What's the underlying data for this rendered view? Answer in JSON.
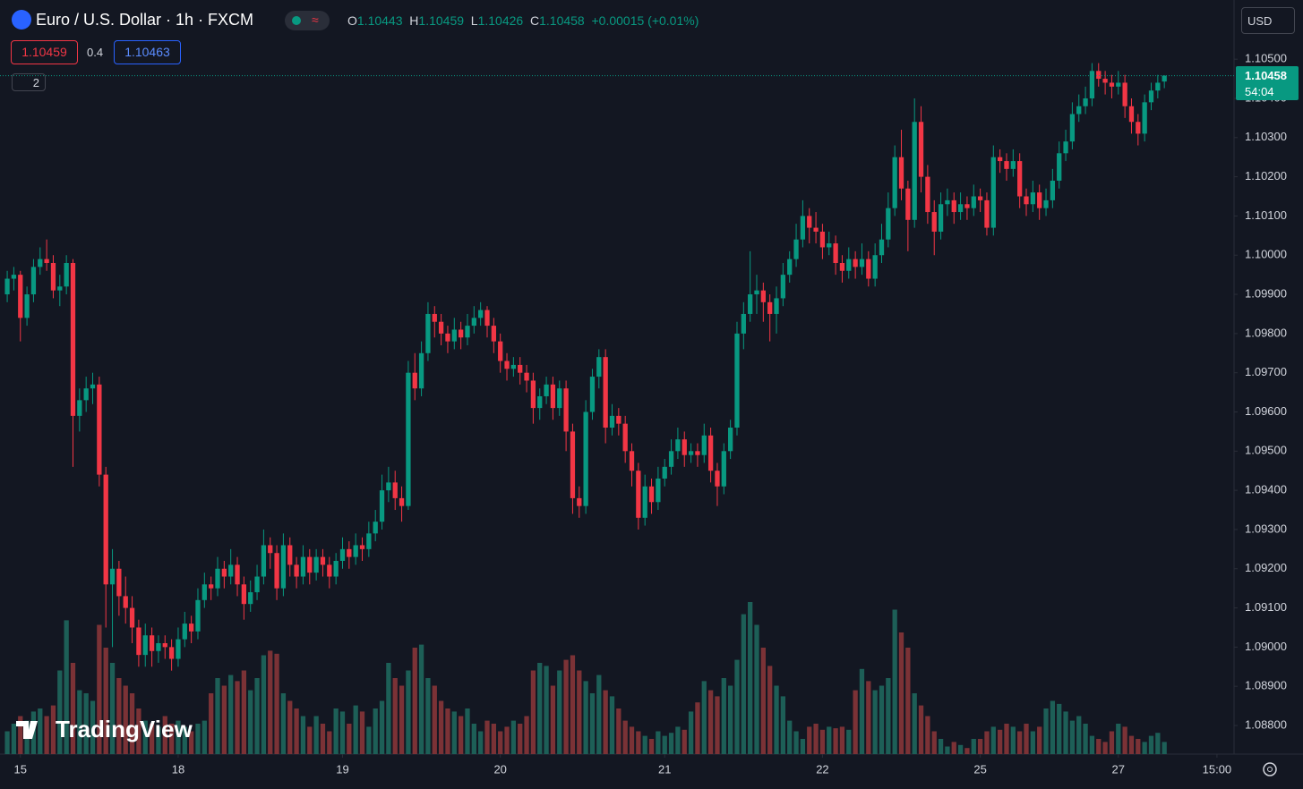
{
  "header": {
    "title": "Euro / U.S. Dollar · 1h · FXCM",
    "o": "O",
    "h": "H",
    "l": "L",
    "c": "C",
    "change": "+0.00015 (+0.01%)",
    "sell": 1.10459,
    "spread": 0.4,
    "buy": "1.10463",
    "indicators": "2",
    "currency": "USD",
    "countdown": "54:04",
    "watermark": "TradingView"
  },
  "chart_data": {
    "type": "candlestick",
    "up_color": "#089981",
    "down_color": "#f23645",
    "volume_up_color": "#1d5f57",
    "volume_down_color": "#7b3236",
    "ylim": [
      1.08727,
      1.10651
    ],
    "y2lim": [
      0,
      100
    ],
    "xlim": [
      -1.1,
      186.6
    ],
    "yticks": [
      {
        "value": 1.088,
        "label": "1.08800"
      },
      {
        "value": 1.089,
        "label": "1.08900"
      },
      {
        "value": 1.09,
        "label": "1.09000"
      },
      {
        "value": 1.091,
        "label": "1.09100"
      },
      {
        "value": 1.092,
        "label": "1.09200"
      },
      {
        "value": 1.093,
        "label": "1.09300"
      },
      {
        "value": 1.094,
        "label": "1.09400"
      },
      {
        "value": 1.095,
        "label": "1.09500"
      },
      {
        "value": 1.096,
        "label": "1.09600"
      },
      {
        "value": 1.097,
        "label": "1.09700"
      },
      {
        "value": 1.098,
        "label": "1.09800"
      },
      {
        "value": 1.099,
        "label": "1.09900"
      },
      {
        "value": 1.1,
        "label": "1.10000"
      },
      {
        "value": 1.101,
        "label": "1.10100"
      },
      {
        "value": 1.102,
        "label": "1.10200"
      },
      {
        "value": 1.103,
        "label": "1.10300"
      },
      {
        "value": 1.104,
        "label": "1.10400"
      },
      {
        "value": 1.105,
        "label": "1.10500"
      }
    ],
    "xticks": [
      {
        "value": 2,
        "label": "15"
      },
      {
        "value": 26,
        "label": "18"
      },
      {
        "value": 51,
        "label": "19"
      },
      {
        "value": 75,
        "label": "20"
      },
      {
        "value": 100,
        "label": "21"
      },
      {
        "value": 124,
        "label": "22"
      },
      {
        "value": 148,
        "label": "25"
      },
      {
        "value": 169,
        "label": "27"
      },
      {
        "value": 184,
        "label": "15:00"
      }
    ],
    "candles": [
      [
        1.099,
        1.0996,
        1.0988,
        1.0994
      ],
      [
        1.0994,
        1.0997,
        1.0991,
        1.0995
      ],
      [
        1.0995,
        1.0996,
        1.0978,
        1.0984
      ],
      [
        1.0984,
        1.0992,
        1.0982,
        1.099
      ],
      [
        1.099,
        1.0999,
        1.0988,
        1.0997
      ],
      [
        1.0997,
        1.1002,
        1.0995,
        1.0999
      ],
      [
        1.0999,
        1.1004,
        1.0996,
        1.0998
      ],
      [
        1.0998,
        1.1,
        1.0989,
        1.0991
      ],
      [
        1.0991,
        1.0995,
        1.0987,
        1.0992
      ],
      [
        1.0992,
        1.1,
        1.099,
        1.0998
      ],
      [
        1.0998,
        1.0999,
        1.0946,
        1.0959
      ],
      [
        1.0959,
        1.0966,
        1.0955,
        1.0963
      ],
      [
        1.0963,
        1.0969,
        1.096,
        1.0966
      ],
      [
        1.0966,
        1.097,
        1.0962,
        1.0967
      ],
      [
        1.0967,
        1.0969,
        1.0941,
        1.0944
      ],
      [
        1.0944,
        1.0946,
        1.0905,
        1.0916
      ],
      [
        1.0916,
        1.0925,
        1.09,
        1.092
      ],
      [
        1.092,
        1.0922,
        1.0908,
        1.0913
      ],
      [
        1.0913,
        1.0918,
        1.0906,
        1.091
      ],
      [
        1.091,
        1.0913,
        1.0901,
        1.0905
      ],
      [
        1.0905,
        1.0907,
        1.0895,
        1.0898
      ],
      [
        1.0898,
        1.0906,
        1.0895,
        1.0903
      ],
      [
        1.0903,
        1.0905,
        1.0895,
        1.0899
      ],
      [
        1.0899,
        1.0903,
        1.0896,
        1.0901
      ],
      [
        1.0901,
        1.0903,
        1.0897,
        1.09
      ],
      [
        1.09,
        1.0902,
        1.0894,
        1.0897
      ],
      [
        1.0897,
        1.0905,
        1.0895,
        1.0902
      ],
      [
        1.0902,
        1.0909,
        1.09,
        1.0906
      ],
      [
        1.0906,
        1.0908,
        1.0901,
        1.0904
      ],
      [
        1.0904,
        1.0915,
        1.0902,
        1.0912
      ],
      [
        1.0912,
        1.0919,
        1.091,
        1.0916
      ],
      [
        1.0916,
        1.0918,
        1.0912,
        1.0915
      ],
      [
        1.0915,
        1.0923,
        1.0913,
        1.092
      ],
      [
        1.092,
        1.0922,
        1.0915,
        1.0918
      ],
      [
        1.0918,
        1.0925,
        1.0916,
        1.0921
      ],
      [
        1.0921,
        1.0923,
        1.0913,
        1.0916
      ],
      [
        1.0916,
        1.0918,
        1.0907,
        1.0911
      ],
      [
        1.0911,
        1.0917,
        1.0909,
        1.0914
      ],
      [
        1.0914,
        1.0921,
        1.0912,
        1.0918
      ],
      [
        1.0918,
        1.093,
        1.0916,
        1.0926
      ],
      [
        1.0926,
        1.0928,
        1.092,
        1.0924
      ],
      [
        1.0924,
        1.0926,
        1.0912,
        1.0915
      ],
      [
        1.0915,
        1.0929,
        1.0913,
        1.0926
      ],
      [
        1.0926,
        1.0928,
        1.0918,
        1.0921
      ],
      [
        1.0921,
        1.0923,
        1.0915,
        1.0918
      ],
      [
        1.0918,
        1.0926,
        1.0916,
        1.0923
      ],
      [
        1.0923,
        1.0925,
        1.0916,
        1.0919
      ],
      [
        1.0919,
        1.0925,
        1.0917,
        1.0923
      ],
      [
        1.0923,
        1.0925,
        1.0918,
        1.0921
      ],
      [
        1.0921,
        1.0923,
        1.0915,
        1.0918
      ],
      [
        1.0918,
        1.0924,
        1.0916,
        1.0922
      ],
      [
        1.0922,
        1.0928,
        1.092,
        1.0925
      ],
      [
        1.0925,
        1.0927,
        1.092,
        1.0923
      ],
      [
        1.0923,
        1.0929,
        1.0921,
        1.0926
      ],
      [
        1.0926,
        1.0928,
        1.0922,
        1.0925
      ],
      [
        1.0925,
        1.0932,
        1.0923,
        1.0929
      ],
      [
        1.0929,
        1.0935,
        1.0927,
        1.0932
      ],
      [
        1.0932,
        1.0944,
        1.093,
        1.094
      ],
      [
        1.094,
        1.0946,
        1.0937,
        1.0942
      ],
      [
        1.0942,
        1.0945,
        1.0935,
        1.0938
      ],
      [
        1.0938,
        1.0941,
        1.0932,
        1.0936
      ],
      [
        1.0936,
        1.0973,
        1.0935,
        1.097
      ],
      [
        1.097,
        1.0975,
        1.0963,
        1.0966
      ],
      [
        1.0966,
        1.0978,
        1.0964,
        1.0975
      ],
      [
        1.0975,
        1.0988,
        1.0973,
        1.0985
      ],
      [
        1.0985,
        1.0987,
        1.0979,
        1.0983
      ],
      [
        1.0983,
        1.0985,
        1.0977,
        1.098
      ],
      [
        1.098,
        1.0982,
        1.0975,
        1.0978
      ],
      [
        1.0978,
        1.0984,
        1.0976,
        1.0981
      ],
      [
        1.0981,
        1.0983,
        1.0976,
        1.0979
      ],
      [
        1.0979,
        1.0985,
        1.0977,
        1.0982
      ],
      [
        1.0982,
        1.0987,
        1.098,
        1.0984
      ],
      [
        1.0984,
        1.0988,
        1.0982,
        1.0986
      ],
      [
        1.0986,
        1.0987,
        1.0979,
        1.0982
      ],
      [
        1.0982,
        1.0984,
        1.0975,
        1.0978
      ],
      [
        1.0978,
        1.098,
        1.097,
        1.0973
      ],
      [
        1.0973,
        1.0975,
        1.0968,
        1.0971
      ],
      [
        1.0971,
        1.0974,
        1.0969,
        1.0972
      ],
      [
        1.0972,
        1.0974,
        1.0967,
        1.097
      ],
      [
        1.097,
        1.0972,
        1.0965,
        1.0968
      ],
      [
        1.0968,
        1.097,
        1.0957,
        1.0961
      ],
      [
        1.0961,
        1.0966,
        1.0958,
        1.0964
      ],
      [
        1.0964,
        1.0969,
        1.0962,
        1.0967
      ],
      [
        1.0967,
        1.0969,
        1.0958,
        1.0961
      ],
      [
        1.0961,
        1.0968,
        1.0959,
        1.0966
      ],
      [
        1.0966,
        1.0968,
        1.095,
        1.0955
      ],
      [
        1.0955,
        1.0957,
        1.0934,
        1.0938
      ],
      [
        1.0938,
        1.0941,
        1.0933,
        1.0936
      ],
      [
        1.0936,
        1.0963,
        1.0934,
        1.096
      ],
      [
        1.096,
        1.0971,
        1.0958,
        1.0969
      ],
      [
        1.0969,
        1.0976,
        1.0966,
        1.0974
      ],
      [
        1.0974,
        1.0976,
        1.0952,
        1.0956
      ],
      [
        1.0956,
        1.0962,
        1.0954,
        1.0959
      ],
      [
        1.0959,
        1.0961,
        1.0954,
        1.0957
      ],
      [
        1.0957,
        1.0959,
        1.0947,
        1.095
      ],
      [
        1.095,
        1.0952,
        1.0941,
        1.0945
      ],
      [
        1.0945,
        1.0947,
        1.093,
        1.0933
      ],
      [
        1.0933,
        1.0944,
        1.0931,
        1.0941
      ],
      [
        1.0941,
        1.0943,
        1.0934,
        1.0937
      ],
      [
        1.0937,
        1.0946,
        1.0935,
        1.0943
      ],
      [
        1.0943,
        1.0948,
        1.0941,
        1.0946
      ],
      [
        1.0946,
        1.0953,
        1.0944,
        1.095
      ],
      [
        1.095,
        1.0956,
        1.0948,
        1.0953
      ],
      [
        1.0953,
        1.0955,
        1.0946,
        1.0949
      ],
      [
        1.0949,
        1.0952,
        1.0947,
        1.095
      ],
      [
        1.095,
        1.0952,
        1.0946,
        1.0949
      ],
      [
        1.0949,
        1.0957,
        1.0947,
        1.0954
      ],
      [
        1.0954,
        1.0956,
        1.0942,
        1.0945
      ],
      [
        1.0945,
        1.0947,
        1.0936,
        1.0941
      ],
      [
        1.0941,
        1.0952,
        1.0939,
        1.095
      ],
      [
        1.095,
        1.0958,
        1.0948,
        1.0956
      ],
      [
        1.0956,
        1.0983,
        1.0954,
        1.098
      ],
      [
        1.098,
        1.0988,
        1.0976,
        1.0985
      ],
      [
        1.0985,
        1.1001,
        1.0983,
        1.099
      ],
      [
        1.099,
        1.0995,
        1.0985,
        1.0991
      ],
      [
        1.0991,
        1.0993,
        1.0983,
        1.0988
      ],
      [
        1.0988,
        1.099,
        1.0978,
        1.0985
      ],
      [
        1.0985,
        1.0992,
        1.098,
        1.0989
      ],
      [
        1.0989,
        1.0998,
        1.0987,
        1.0995
      ],
      [
        1.0995,
        1.1001,
        1.0993,
        1.0999
      ],
      [
        1.0999,
        1.1008,
        1.0997,
        1.1004
      ],
      [
        1.1004,
        1.1014,
        1.1002,
        1.101
      ],
      [
        1.101,
        1.1012,
        1.1003,
        1.1007
      ],
      [
        1.1007,
        1.1011,
        1.1003,
        1.1006
      ],
      [
        1.1006,
        1.1008,
        1.0999,
        1.1002
      ],
      [
        1.1002,
        1.1006,
        1.1,
        1.1003
      ],
      [
        1.1003,
        1.1005,
        1.0995,
        1.0998
      ],
      [
        1.0998,
        1.1,
        1.0993,
        1.0996
      ],
      [
        1.0996,
        1.1002,
        1.0994,
        1.0999
      ],
      [
        1.0999,
        1.1001,
        1.0994,
        1.0997
      ],
      [
        1.0997,
        1.1003,
        1.0995,
        1.0999
      ],
      [
        1.0999,
        1.1001,
        1.0992,
        1.0994
      ],
      [
        1.0994,
        1.1003,
        1.0992,
        1.1
      ],
      [
        1.1,
        1.1008,
        1.0998,
        1.1004
      ],
      [
        1.1004,
        1.1016,
        1.1002,
        1.1012
      ],
      [
        1.1012,
        1.1028,
        1.101,
        1.1025
      ],
      [
        1.1025,
        1.1032,
        1.1014,
        1.1017
      ],
      [
        1.1017,
        1.1019,
        1.1001,
        1.1009
      ],
      [
        1.1009,
        1.104,
        1.1007,
        1.1034
      ],
      [
        1.1034,
        1.1038,
        1.1016,
        1.102
      ],
      [
        1.102,
        1.1023,
        1.1008,
        1.1011
      ],
      [
        1.1011,
        1.1014,
        1.1,
        1.1006
      ],
      [
        1.1006,
        1.1016,
        1.1004,
        1.1013
      ],
      [
        1.1013,
        1.1017,
        1.101,
        1.1014
      ],
      [
        1.1014,
        1.1016,
        1.1008,
        1.1011
      ],
      [
        1.1011,
        1.1016,
        1.1009,
        1.1013
      ],
      [
        1.1013,
        1.1015,
        1.1009,
        1.1012
      ],
      [
        1.1012,
        1.1018,
        1.101,
        1.1015
      ],
      [
        1.1015,
        1.1017,
        1.1011,
        1.1014
      ],
      [
        1.1014,
        1.1016,
        1.1005,
        1.1007
      ],
      [
        1.1007,
        1.1028,
        1.1005,
        1.1025
      ],
      [
        1.1025,
        1.1027,
        1.1021,
        1.1024
      ],
      [
        1.1024,
        1.1026,
        1.1019,
        1.1022
      ],
      [
        1.1022,
        1.1027,
        1.102,
        1.1024
      ],
      [
        1.1024,
        1.1026,
        1.1012,
        1.1015
      ],
      [
        1.1015,
        1.1017,
        1.101,
        1.1013
      ],
      [
        1.1013,
        1.1019,
        1.1011,
        1.1016
      ],
      [
        1.1016,
        1.1018,
        1.1009,
        1.1012
      ],
      [
        1.1012,
        1.1017,
        1.101,
        1.1014
      ],
      [
        1.1014,
        1.1022,
        1.1012,
        1.1019
      ],
      [
        1.1019,
        1.1029,
        1.1017,
        1.1026
      ],
      [
        1.1026,
        1.1032,
        1.1024,
        1.1029
      ],
      [
        1.1029,
        1.1039,
        1.1027,
        1.1036
      ],
      [
        1.1036,
        1.1041,
        1.1034,
        1.1038
      ],
      [
        1.1038,
        1.1043,
        1.1036,
        1.104
      ],
      [
        1.104,
        1.1049,
        1.1038,
        1.1047
      ],
      [
        1.1047,
        1.1049,
        1.1043,
        1.1045
      ],
      [
        1.1045,
        1.1047,
        1.1041,
        1.1044
      ],
      [
        1.1044,
        1.1046,
        1.104,
        1.1043
      ],
      [
        1.1043,
        1.1047,
        1.1041,
        1.1044
      ],
      [
        1.1044,
        1.1046,
        1.1035,
        1.1038
      ],
      [
        1.1038,
        1.104,
        1.1031,
        1.1034
      ],
      [
        1.1034,
        1.1036,
        1.1028,
        1.1031
      ],
      [
        1.1031,
        1.1041,
        1.1029,
        1.1039
      ],
      [
        1.1039,
        1.1044,
        1.1037,
        1.1042
      ],
      [
        1.1042,
        1.1046,
        1.104,
        1.1044
      ],
      [
        1.10443,
        1.10459,
        1.10426,
        1.10458
      ]
    ],
    "volume": [
      15,
      20,
      25,
      22,
      28,
      30,
      25,
      32,
      55,
      88,
      60,
      42,
      40,
      35,
      85,
      70,
      60,
      50,
      45,
      40,
      30,
      22,
      20,
      18,
      25,
      20,
      22,
      18,
      15,
      20,
      22,
      40,
      50,
      45,
      52,
      48,
      55,
      42,
      50,
      65,
      68,
      66,
      40,
      35,
      30,
      25,
      18,
      25,
      20,
      15,
      30,
      28,
      20,
      32,
      28,
      18,
      30,
      35,
      60,
      50,
      45,
      55,
      70,
      72,
      50,
      45,
      35,
      30,
      28,
      25,
      30,
      20,
      15,
      22,
      20,
      15,
      18,
      22,
      20,
      25,
      55,
      60,
      58,
      45,
      55,
      62,
      65,
      55,
      48,
      40,
      52,
      42,
      38,
      30,
      22,
      18,
      15,
      12,
      10,
      15,
      12,
      14,
      18,
      16,
      28,
      34,
      48,
      42,
      38,
      50,
      45,
      62,
      92,
      100,
      85,
      70,
      58,
      45,
      38,
      22,
      15,
      10,
      18,
      20,
      16,
      18,
      17,
      18,
      16,
      42,
      56,
      48,
      42,
      45,
      50,
      95,
      80,
      70,
      40,
      32,
      25,
      15,
      10,
      5,
      8,
      6,
      4,
      10,
      10,
      15,
      18,
      16,
      20,
      18,
      15,
      20,
      15,
      18,
      30,
      35,
      33,
      28,
      22,
      25,
      20,
      12,
      10,
      8,
      15,
      20,
      18,
      12,
      10,
      8,
      12,
      14,
      8
    ]
  }
}
